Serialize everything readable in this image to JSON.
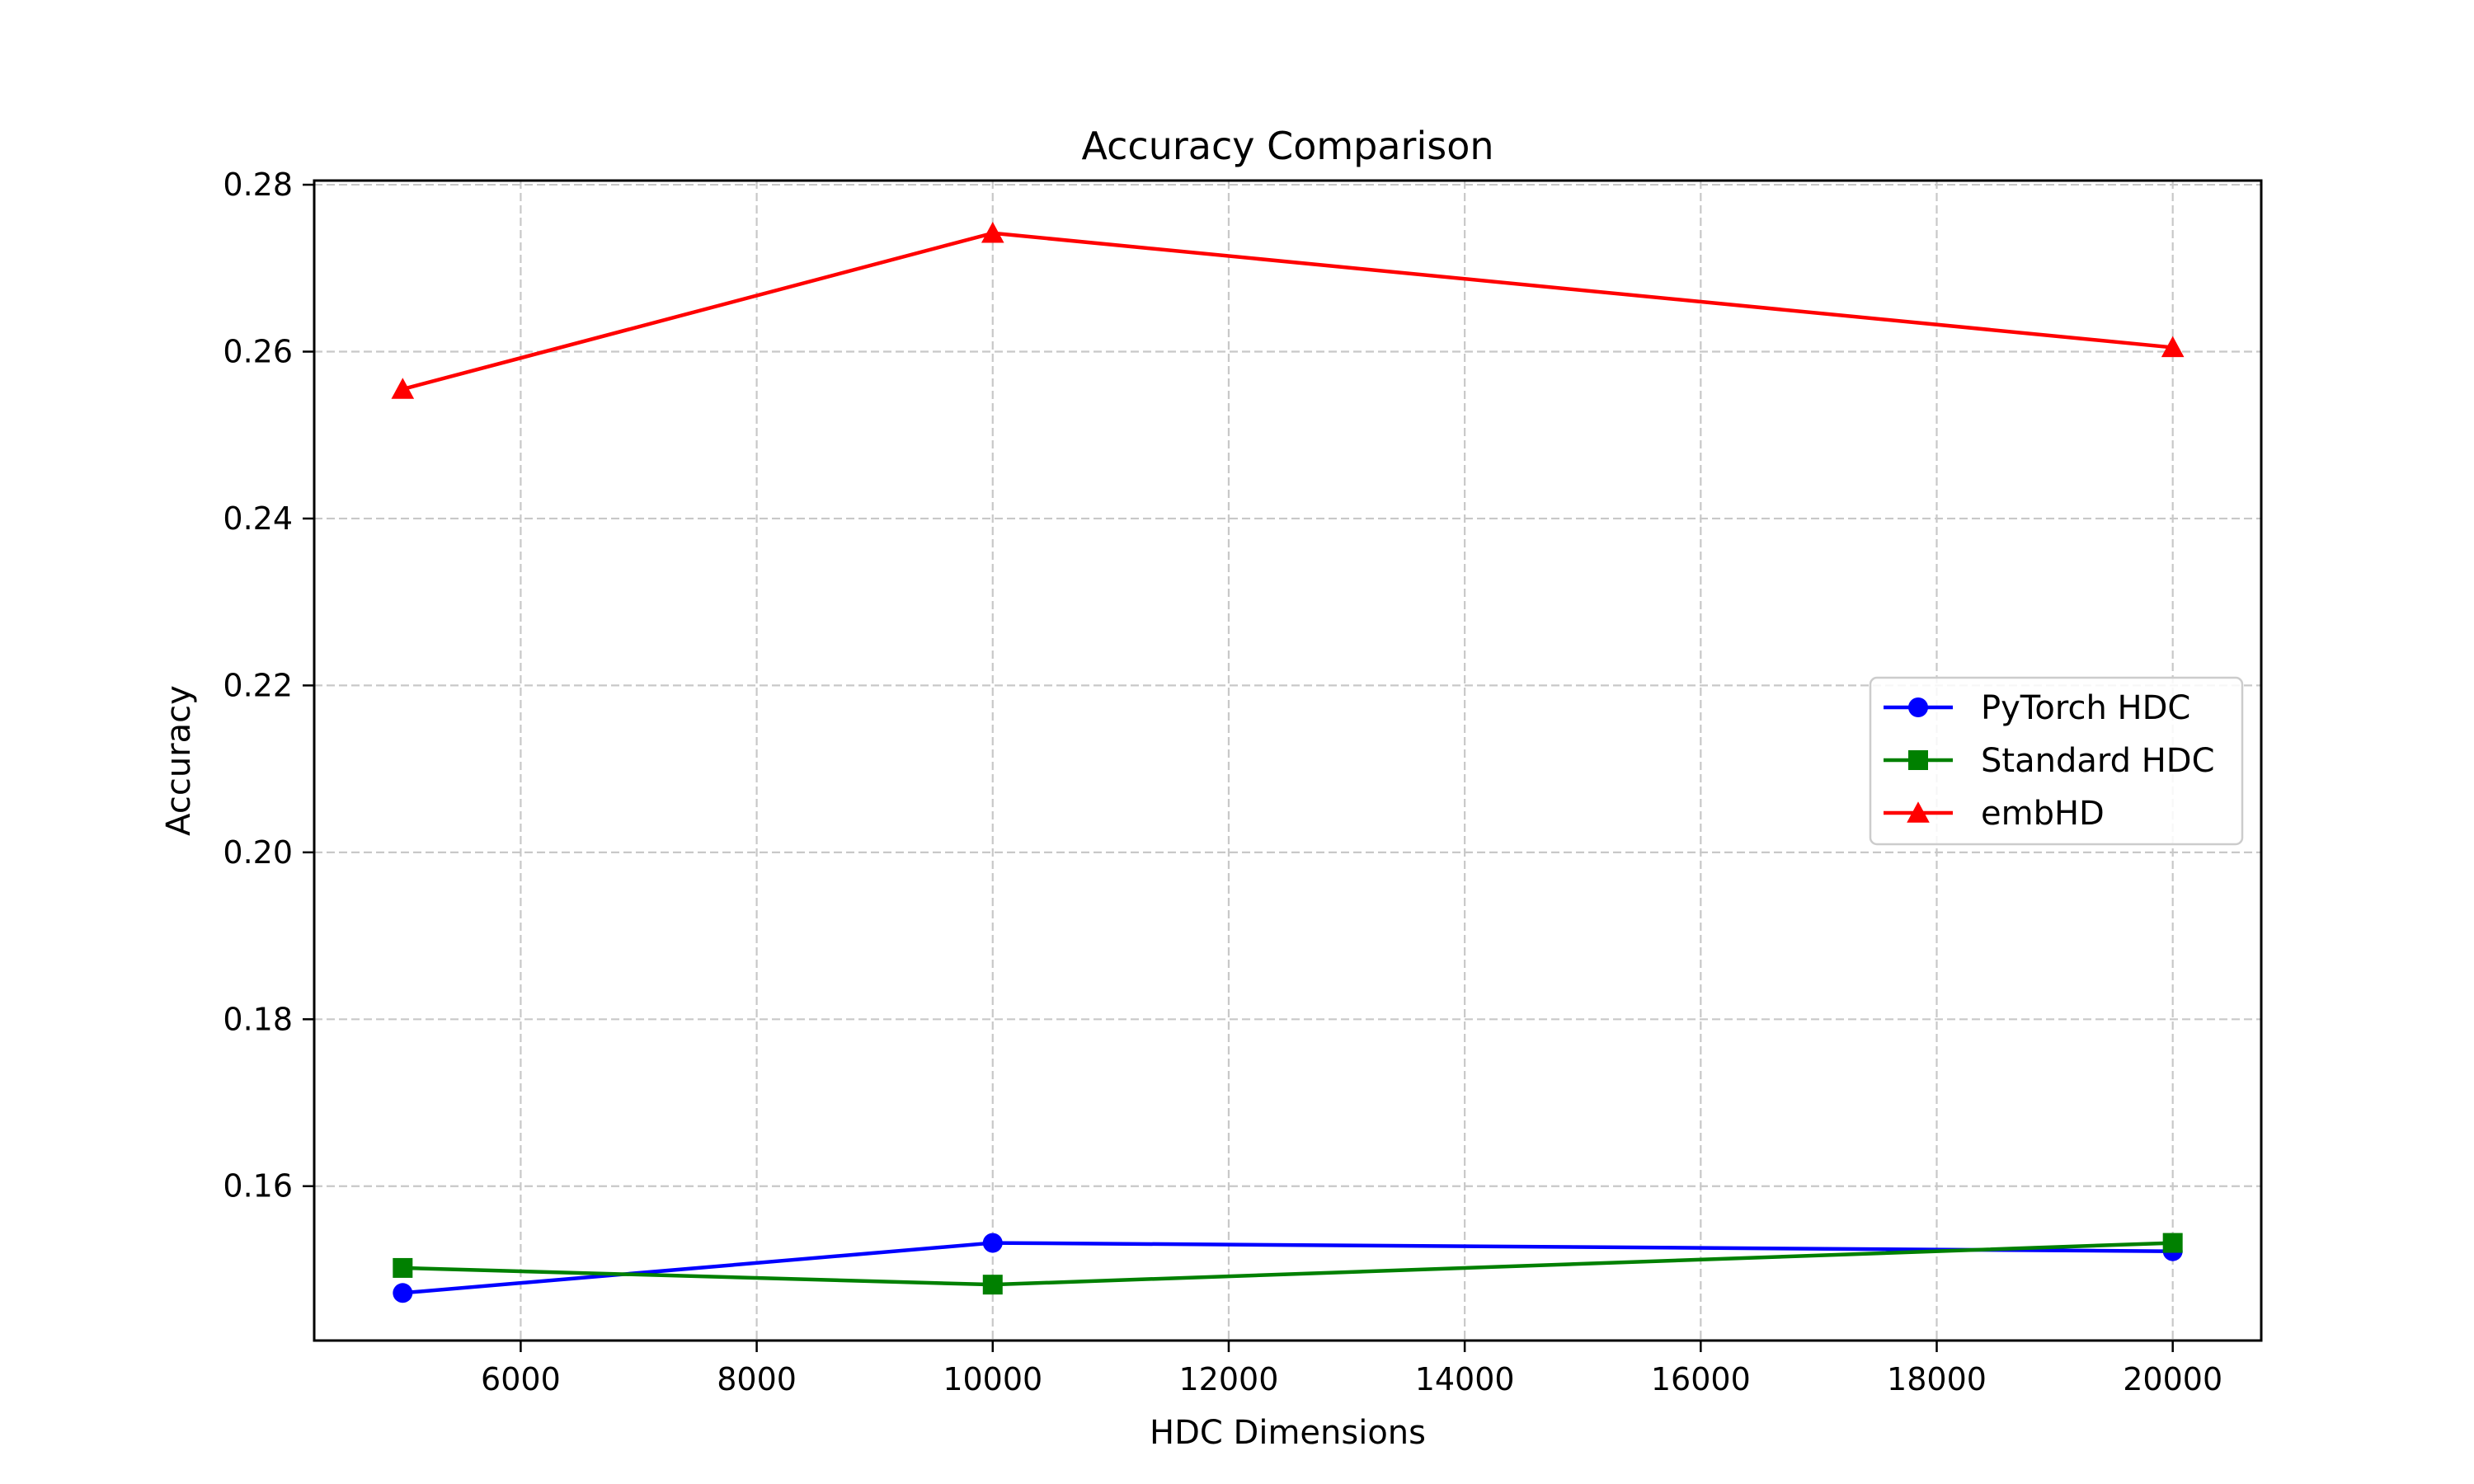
{
  "chart_data": {
    "type": "line",
    "title": "Accuracy Comparison",
    "xlabel": "HDC Dimensions",
    "ylabel": "Accuracy",
    "x": [
      5000,
      10000,
      20000
    ],
    "xlim": [
      4250,
      20750
    ],
    "ylim": [
      0.1415,
      0.2805
    ],
    "xticks": [
      6000,
      8000,
      10000,
      12000,
      14000,
      16000,
      18000,
      20000
    ],
    "xtick_labels": [
      "6000",
      "8000",
      "10000",
      "12000",
      "14000",
      "16000",
      "18000",
      "20000"
    ],
    "yticks": [
      0.16,
      0.18,
      0.2,
      0.22,
      0.24,
      0.26,
      0.28
    ],
    "ytick_labels": [
      "0.16",
      "0.18",
      "0.20",
      "0.22",
      "0.24",
      "0.26",
      "0.28"
    ],
    "grid": true,
    "legend_position": "center-right",
    "series": [
      {
        "name": "PyTorch HDC",
        "values": [
          0.1472,
          0.1532,
          0.1522
        ],
        "color": "#0000ff",
        "marker": "circle"
      },
      {
        "name": "Standard HDC",
        "values": [
          0.1502,
          0.1482,
          0.1532
        ],
        "color": "#008000",
        "marker": "square"
      },
      {
        "name": "embHD",
        "values": [
          0.2555,
          0.2742,
          0.2605
        ],
        "color": "#ff0000",
        "marker": "triangle"
      }
    ]
  }
}
